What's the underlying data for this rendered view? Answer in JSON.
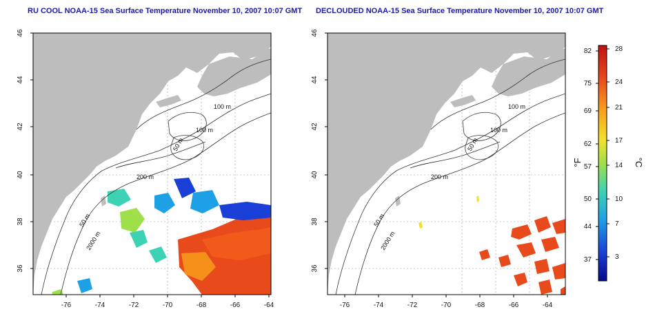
{
  "left_panel": {
    "title": "RU COOL NOAA-15 Sea Surface Temperature November 10, 2007 10:07 GMT",
    "x_ticks": [
      "-76",
      "-74",
      "-72",
      "-70",
      "-68",
      "-66",
      "-64"
    ],
    "y_ticks": [
      "46",
      "44",
      "42",
      "40",
      "38",
      "36"
    ],
    "contour_labels": [
      "100 m",
      "100 m",
      "50 m",
      "200 m",
      "50 m",
      "2000 m"
    ]
  },
  "right_panel": {
    "title": "DECLOUDED NOAA-15 Sea Surface Temperature November 10, 2007 10:07 GMT",
    "x_ticks": [
      "-76",
      "-74",
      "-72",
      "-70",
      "-68",
      "-66",
      "-64"
    ],
    "y_ticks": [
      "46",
      "44",
      "42",
      "40",
      "38",
      "36"
    ],
    "contour_labels": [
      "100 m",
      "100 m",
      "50 m",
      "200 m",
      "50 m",
      "2000 m"
    ]
  },
  "colorbar": {
    "fahrenheit_ticks": [
      "82",
      "75",
      "69",
      "62",
      "57",
      "50",
      "44",
      "37"
    ],
    "celsius_ticks": [
      "28",
      "24",
      "21",
      "17",
      "14",
      "10",
      "7",
      "3"
    ],
    "fahrenheit_label": "°F",
    "celsius_label": "°C"
  },
  "colors": {
    "land": "#bdbdbd",
    "title": "#1a1aa8",
    "warm_water": "#e84a1c",
    "colorbar_stops": [
      "#08088a",
      "#1a3fd6",
      "#1ea0e6",
      "#3ed2b4",
      "#9fe04a",
      "#f2e22a",
      "#f7a31c",
      "#e84a1c",
      "#c01010"
    ]
  }
}
